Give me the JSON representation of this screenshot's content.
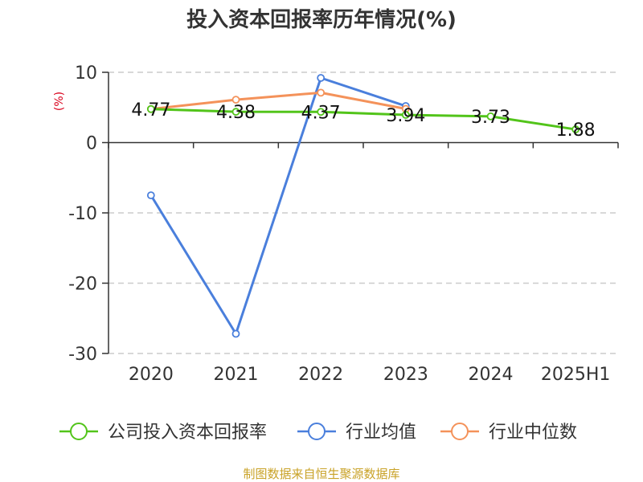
{
  "chart_data": {
    "type": "line",
    "title": "投入资本回报率历年情况(%)",
    "ylabel": "(%)",
    "xlabel": "",
    "categories": [
      "2020",
      "2021",
      "2022",
      "2023",
      "2024",
      "2025H1"
    ],
    "ylim": [
      -30,
      10
    ],
    "yticks": [
      10,
      0,
      -10,
      -20,
      -30
    ],
    "grid": true,
    "legend_position": "bottom",
    "series": [
      {
        "name": "公司投入资本回报率",
        "color": "#52c41a",
        "values": [
          4.77,
          4.38,
          4.37,
          3.94,
          3.73,
          1.88
        ],
        "data_labels": [
          "4.77",
          "4.38",
          "4.37",
          "3.94",
          "3.73",
          "1.88"
        ]
      },
      {
        "name": "行业均值",
        "color": "#4a7fdc",
        "values": [
          -7.5,
          -27.2,
          9.2,
          5.2,
          null,
          null
        ]
      },
      {
        "name": "行业中位数",
        "color": "#f4925a",
        "values": [
          4.77,
          6.1,
          7.1,
          4.8,
          null,
          null
        ]
      }
    ]
  },
  "colors": {
    "ylabel": "#d9001b",
    "source": "#c9a227",
    "axis": "#333333",
    "grid": "#cccccc"
  },
  "source": "制图数据来自恒生聚源数据库"
}
